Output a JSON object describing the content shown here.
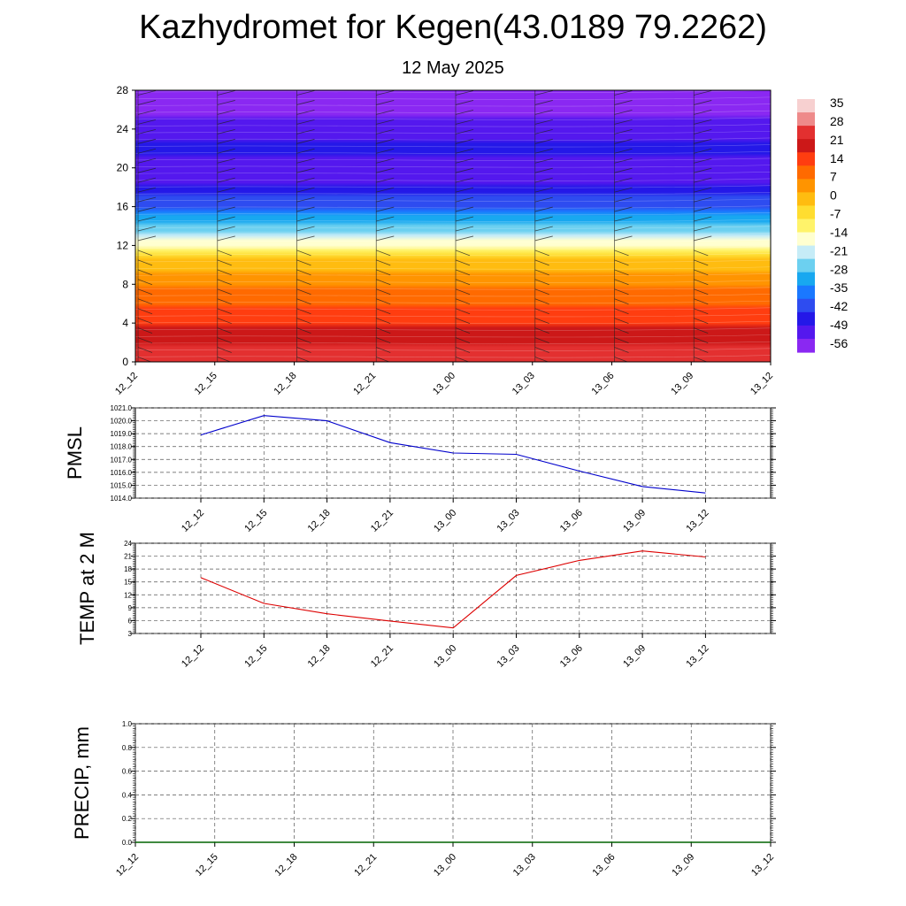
{
  "title": "Kazhydromet for Kegen(43.0189 79.2262)",
  "subtitle": "12 May 2025",
  "time_labels": [
    "12_12",
    "12_15",
    "12_18",
    "12_21",
    "13_00",
    "13_03",
    "13_06",
    "13_09",
    "13_12"
  ],
  "chart_data": [
    {
      "type": "heatmap",
      "name": "temperature-height cross-section",
      "x": [
        "12_12",
        "12_15",
        "12_18",
        "12_21",
        "13_00",
        "13_03",
        "13_06",
        "13_09",
        "13_12"
      ],
      "ylim": [
        0,
        28
      ],
      "yticks": [
        0,
        4,
        8,
        12,
        16,
        20,
        24,
        28
      ],
      "colorbar": {
        "labels": [
          35,
          28,
          21,
          14,
          7,
          0,
          -7,
          -14,
          -21,
          -28,
          -35,
          -42,
          -49,
          -56
        ],
        "colors": [
          "#f7d0d0",
          "#ee8a8a",
          "#e33030",
          "#cc1818",
          "#ff3d10",
          "#ff6a00",
          "#ff9400",
          "#ffbc10",
          "#ffdd30",
          "#fff36a",
          "#ffffd0",
          "#c6ecf7",
          "#6cd0f0",
          "#18a8f0",
          "#1a78ff",
          "#2e4cf0",
          "#2418e8",
          "#5418ee",
          "#8a28f2"
        ]
      },
      "temperature_profile": [
        {
          "height": 0,
          "value": 27
        },
        {
          "height": 3,
          "value": 20
        },
        {
          "height": 6,
          "value": 12
        },
        {
          "height": 9,
          "value": 3
        },
        {
          "height": 11,
          "value": -4
        },
        {
          "height": 11.5,
          "value": -10
        },
        {
          "height": 12,
          "value": -15
        },
        {
          "height": 14,
          "value": -30
        },
        {
          "height": 16,
          "value": -42
        },
        {
          "height": 18,
          "value": -52
        },
        {
          "height": 20,
          "value": -56
        },
        {
          "height": 22,
          "value": -50
        },
        {
          "height": 24,
          "value": -56
        },
        {
          "height": 28,
          "value": -62
        }
      ]
    },
    {
      "type": "line",
      "ylabel": "PMSL",
      "x": [
        "12_12",
        "12_15",
        "12_18",
        "12_21",
        "13_00",
        "13_03",
        "13_06",
        "13_09",
        "13_12"
      ],
      "ylim": [
        1014,
        1021
      ],
      "yticks": [
        "1014.0",
        "1015.0",
        "1016.0",
        "1017.0",
        "1018.0",
        "1019.0",
        "1020.0",
        "1021.0"
      ],
      "values": [
        1018.9,
        1020.4,
        1020.0,
        1018.3,
        1017.5,
        1017.4,
        1016.1,
        1014.9,
        1014.4
      ],
      "color": "#0000cc"
    },
    {
      "type": "line",
      "ylabel": "TEMP at 2 M",
      "x": [
        "12_12",
        "12_15",
        "12_18",
        "12_21",
        "13_00",
        "13_03",
        "13_06",
        "13_09",
        "13_12"
      ],
      "ylim": [
        3,
        24
      ],
      "yticks": [
        "3",
        "6",
        "9",
        "12",
        "15",
        "18",
        "21",
        "24"
      ],
      "values": [
        16,
        10,
        7.6,
        5.9,
        4.3,
        16.5,
        20,
        22.2,
        20.8
      ],
      "color": "#dd0000"
    },
    {
      "type": "line",
      "ylabel": "PRECIP, mm",
      "x": [
        "12_12",
        "12_15",
        "12_18",
        "12_21",
        "13_00",
        "13_03",
        "13_06",
        "13_09",
        "13_12"
      ],
      "ylim": [
        0,
        1
      ],
      "yticks": [
        "0.0",
        "0.2",
        "0.4",
        "0.6",
        "0.8",
        "1.0"
      ],
      "values": [
        0,
        0,
        0,
        0,
        0,
        0,
        0,
        0,
        0
      ],
      "color": "#006400"
    }
  ]
}
